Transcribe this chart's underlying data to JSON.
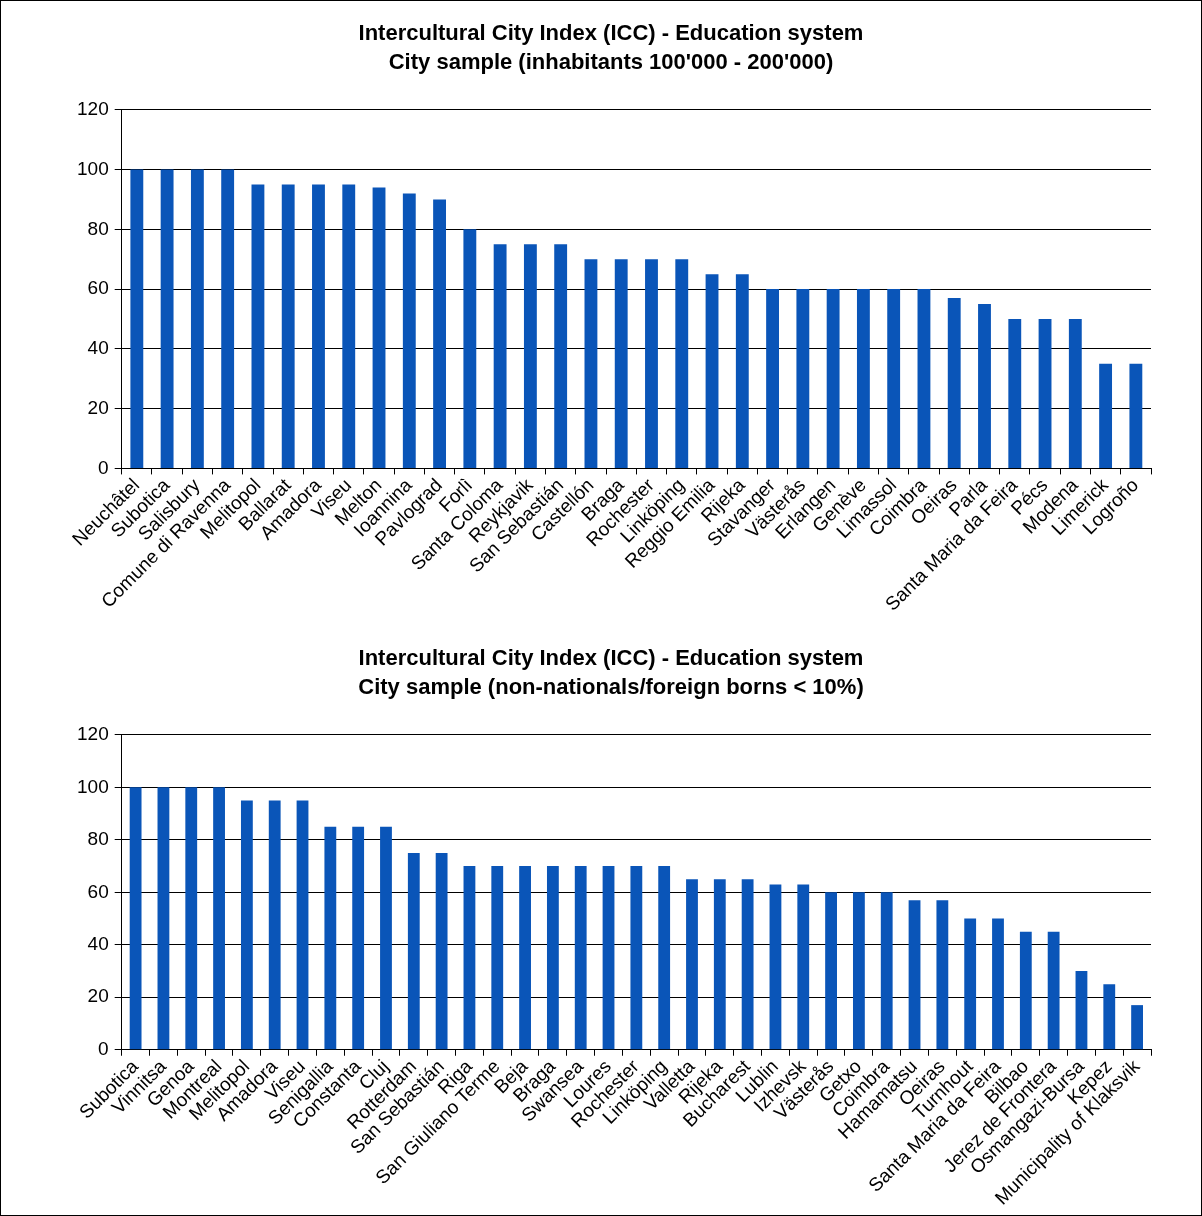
{
  "chart_data": [
    {
      "type": "bar",
      "title": "Intercultural City Index (ICC) - Education system",
      "subtitle": "City sample (inhabitants 100'000 - 200'000)",
      "categories": [
        "Neuchâtel",
        "Subotica",
        "Salisbury",
        "Comune di Ravenna",
        "Melitopol",
        "Ballarat",
        "Amadora",
        "Viseu",
        "Melton",
        "Ioannina",
        "Pavlograd",
        "Forlì",
        "Santa Coloma",
        "Reykjavik",
        "San Sebastián",
        "Castellón",
        "Braga",
        "Rochester",
        "Linköping",
        "Reggio Emilia",
        "Rijeka",
        "Stavanger",
        "Västerås",
        "Erlangen",
        "Genève",
        "Limassol",
        "Coimbra",
        "Oeiras",
        "Parla",
        "Santa Maria da Feira",
        "Pécs",
        "Modena",
        "Limerick",
        "Logroño"
      ],
      "values": [
        100,
        100,
        100,
        100,
        95,
        95,
        95,
        95,
        94,
        92,
        90,
        80,
        75,
        75,
        75,
        70,
        70,
        70,
        70,
        65,
        65,
        60,
        60,
        60,
        60,
        60,
        60,
        57,
        55,
        50,
        50,
        50,
        35,
        35
      ],
      "color": "#0a55b8",
      "ylim": [
        0,
        120
      ],
      "yticks": [
        0,
        20,
        40,
        60,
        80,
        100,
        120
      ],
      "grid": "y"
    },
    {
      "type": "bar",
      "title": "Intercultural City Index (ICC) - Education system",
      "subtitle": "City sample (non-nationals/foreign borns < 10%)",
      "categories": [
        "Subotica",
        "Vinnitsa",
        "Genoa",
        "Montreal",
        "Melitopol",
        "Amadora",
        "Viseu",
        "Senigallia",
        "Constanta",
        "Cluj",
        "Rotterdam",
        "San Sebastián",
        "Riga",
        "San Giuliano Terme",
        "Beja",
        "Braga",
        "Swansea",
        "Loures",
        "Rochester",
        "Linköping",
        "Valletta",
        "Rijeka",
        "Bucharest",
        "Lublin",
        "Izhevsk",
        "Västerås",
        "Getxo",
        "Coimbra",
        "Hamamatsu",
        "Oeiras",
        "Turnhout",
        "Santa Maria da Feira",
        "Bilbao",
        "Jerez de Frontera",
        "Osmangazi-Bursa",
        "Kepez",
        "Municipality of Klaksvik"
      ],
      "values": [
        100,
        100,
        100,
        100,
        95,
        95,
        95,
        85,
        85,
        85,
        75,
        75,
        70,
        70,
        70,
        70,
        70,
        70,
        70,
        70,
        65,
        65,
        65,
        63,
        63,
        60,
        60,
        60,
        57,
        57,
        50,
        50,
        45,
        45,
        30,
        25,
        17
      ],
      "color": "#0a55b8",
      "ylim": [
        0,
        120
      ],
      "yticks": [
        0,
        20,
        40,
        60,
        80,
        100,
        120
      ],
      "grid": "y"
    }
  ]
}
